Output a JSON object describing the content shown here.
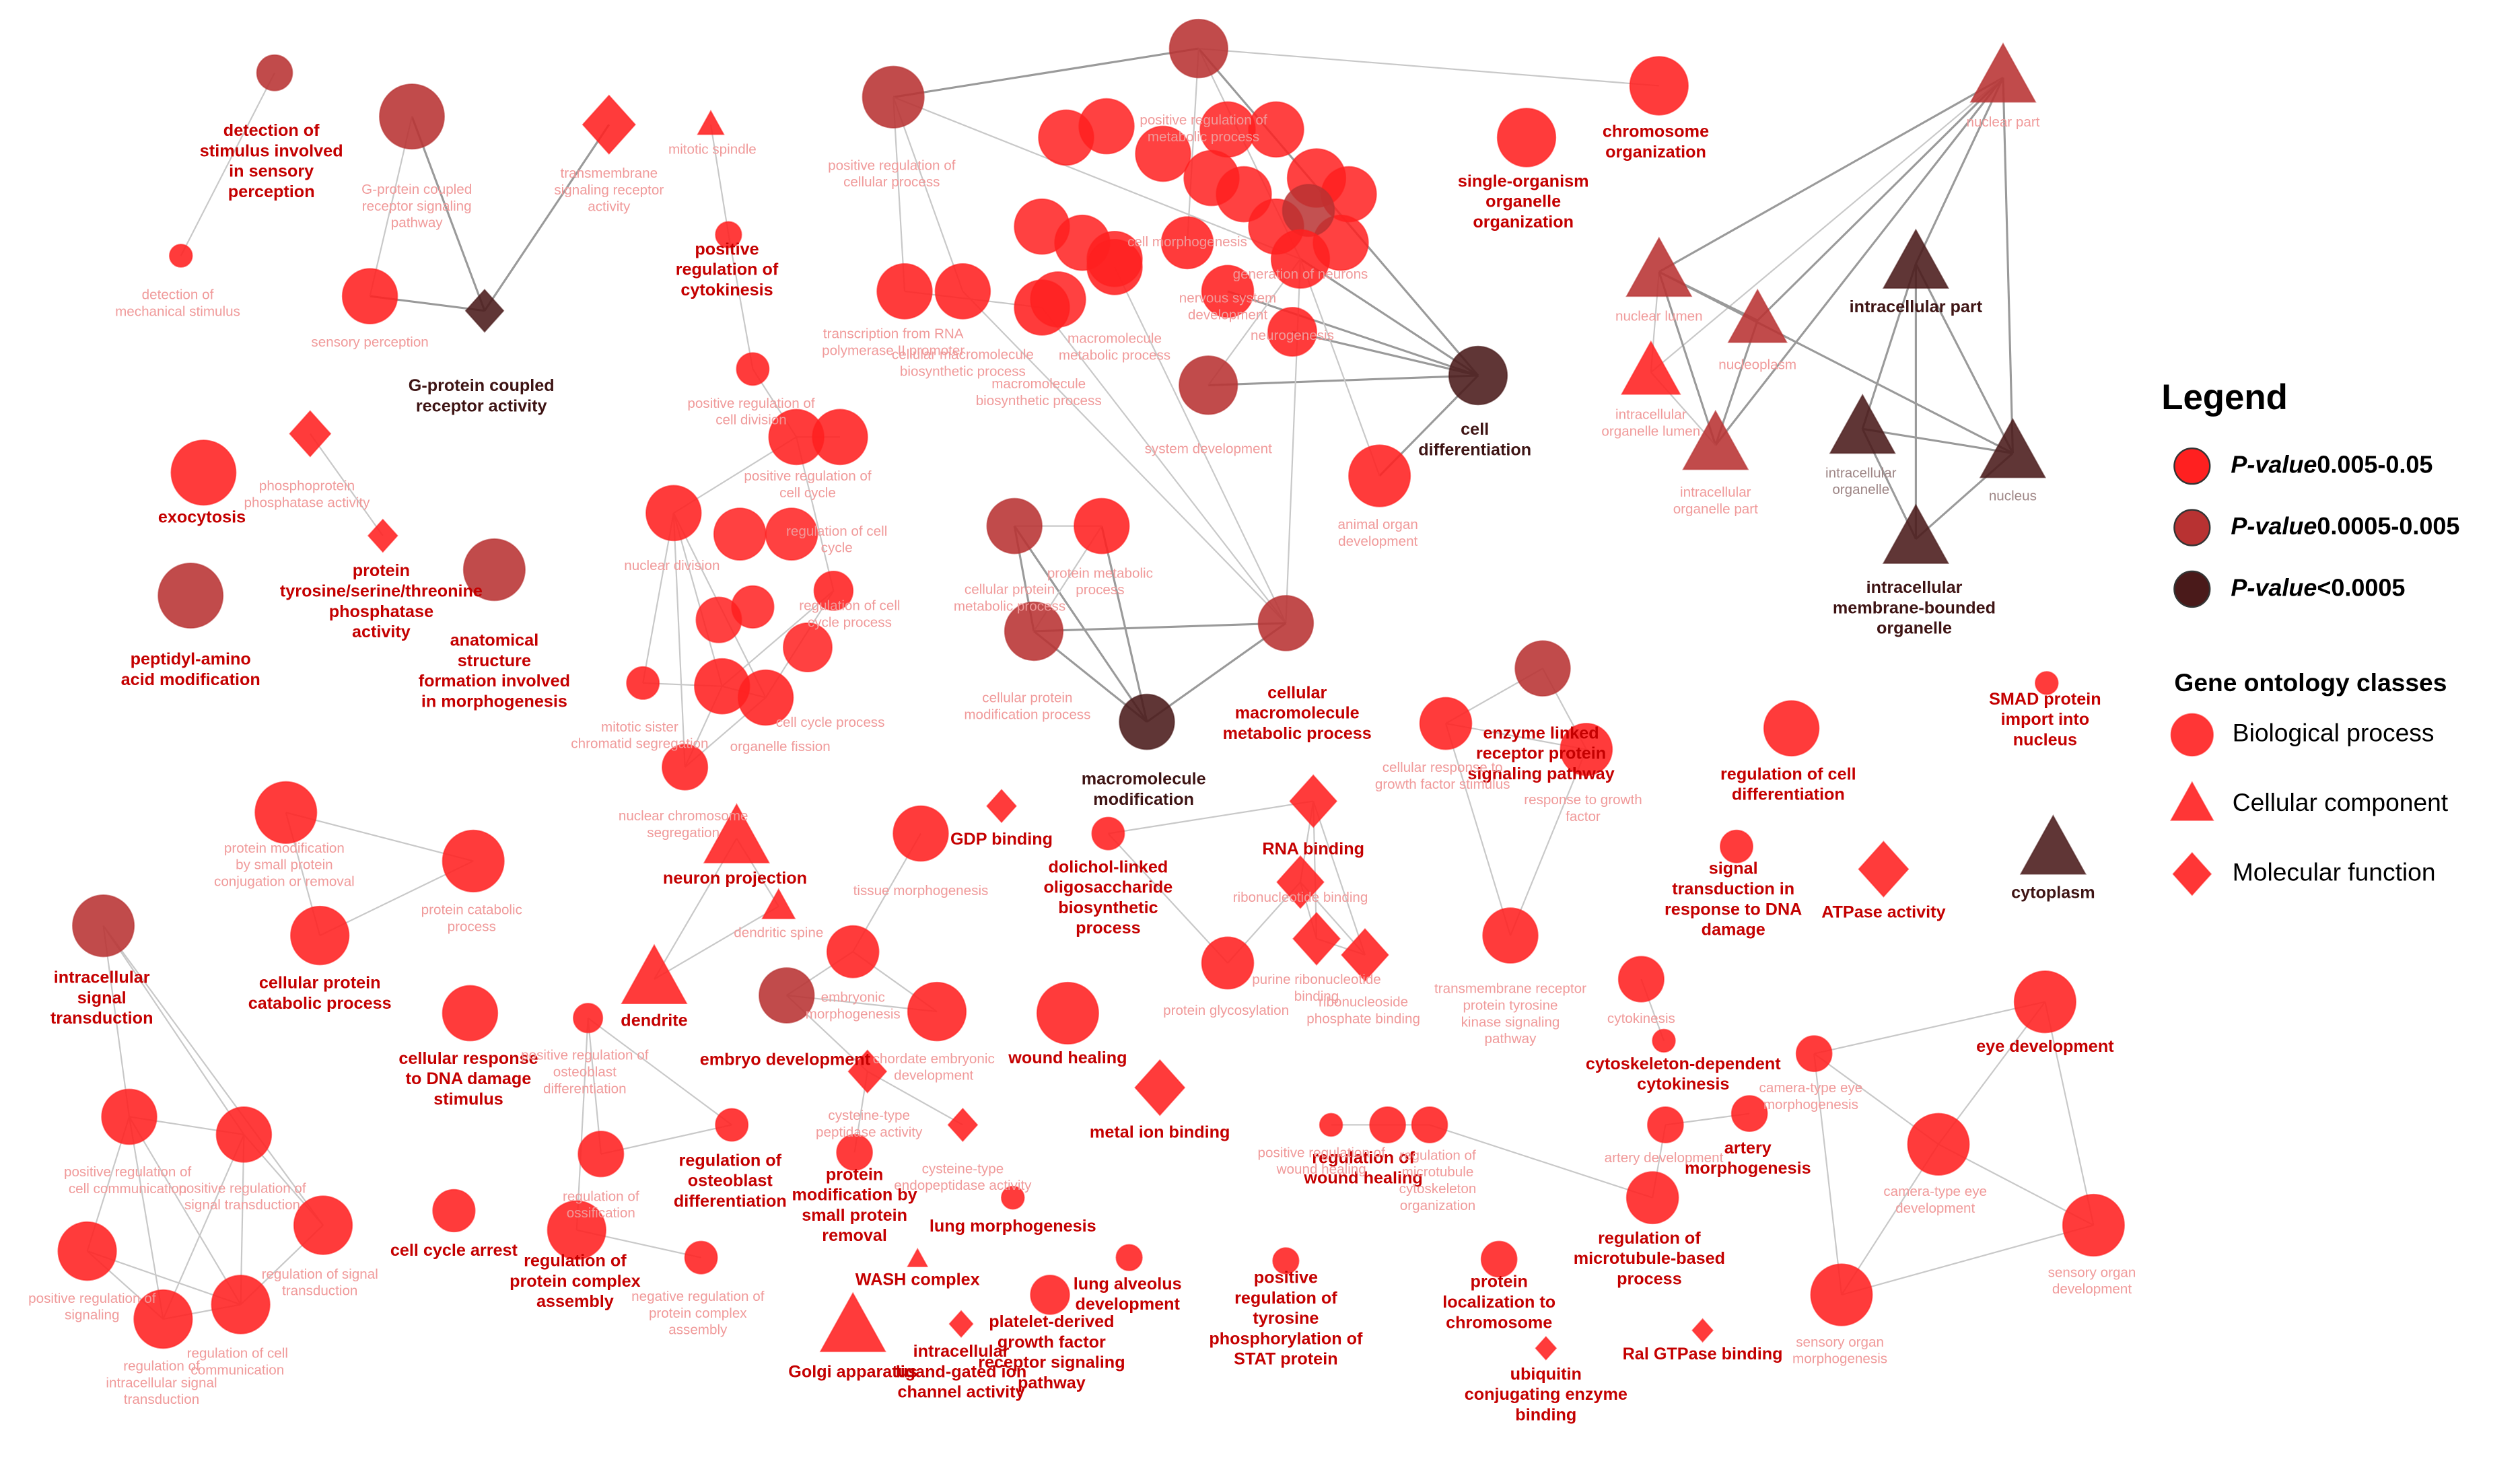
{
  "nodes": [
    {
      "label": "detection of stimulus involved in sensory perception",
      "level": 1,
      "class": 0,
      "bold": true
    },
    {
      "label": "detection of mechanical stimulus",
      "level": 0,
      "class": 0,
      "bold": false
    },
    {
      "label": "G-protein coupled receptor signaling pathway",
      "level": 1,
      "class": 0,
      "bold": false
    },
    {
      "label": "sensory perception",
      "level": 0,
      "class": 0,
      "bold": false
    },
    {
      "label": "G-protein coupled receptor activity",
      "level": 2,
      "class": 2,
      "bold": true
    },
    {
      "label": "transmembrane signaling receptor activity",
      "level": 0,
      "class": 2,
      "bold": false
    },
    {
      "label": "mitotic spindle",
      "level": 0,
      "class": 1,
      "bold": false
    },
    {
      "label": "positive regulation of cytokinesis",
      "level": 0,
      "class": 0,
      "bold": true
    },
    {
      "label": "exocytosis",
      "level": 0,
      "class": 0,
      "bold": true
    },
    {
      "label": "phosphoprotein phosphatase activity",
      "level": 0,
      "class": 2,
      "bold": false
    },
    {
      "label": "protein tyrosine/serine/threonine phosphatase activity",
      "level": 0,
      "class": 2,
      "bold": true
    },
    {
      "label": "peptidyl-amino acid modification",
      "level": 1,
      "class": 0,
      "bold": true
    },
    {
      "label": "anatomical structure formation involved in morphogenesis",
      "level": 1,
      "class": 0,
      "bold": true
    },
    {
      "label": "positive regulation of cell division",
      "level": 0,
      "class": 0,
      "bold": false
    },
    {
      "label": "intracellular signal transduction",
      "level": 1,
      "class": 0,
      "bold": true
    },
    {
      "label": "protein modification by small protein conjugation or removal",
      "level": 0,
      "class": 0,
      "bold": false
    },
    {
      "label": "protein catabolic process",
      "level": 0,
      "class": 0,
      "bold": false
    },
    {
      "label": "cellular protein catabolic process",
      "level": 0,
      "class": 0,
      "bold": true
    },
    {
      "label": "cellular response to DNA damage stimulus",
      "level": 0,
      "class": 0,
      "bold": true
    },
    {
      "label": "positive regulation of osteoblast differentiation",
      "level": 0,
      "class": 0,
      "bold": false
    },
    {
      "label": "regulation of osteoblast differentiation",
      "level": 0,
      "class": 0,
      "bold": true
    },
    {
      "label": "regulation of ossification",
      "level": 0,
      "class": 0,
      "bold": false
    },
    {
      "label": "cell cycle arrest",
      "level": 0,
      "class": 0,
      "bold": true
    },
    {
      "label": "regulation of protein complex assembly",
      "level": 0,
      "class": 0,
      "bold": true
    },
    {
      "label": "negative regulation of protein complex assembly",
      "level": 0,
      "class": 0,
      "bold": false
    },
    {
      "label": "neuron projection",
      "level": 0,
      "class": 1,
      "bold": true
    },
    {
      "label": "dendritic spine",
      "level": 0,
      "class": 1,
      "bold": false
    },
    {
      "label": "dendrite",
      "level": 0,
      "class": 1,
      "bold": true
    },
    {
      "label": "embryonic morphogenesis",
      "level": 0,
      "class": 0,
      "bold": false
    },
    {
      "label": "embryo development",
      "level": 1,
      "class": 0,
      "bold": true
    },
    {
      "label": "chordate embryonic development",
      "level": 0,
      "class": 0,
      "bold": false
    },
    {
      "label": "tissue morphogenesis",
      "level": 0,
      "class": 0,
      "bold": false
    },
    {
      "label": "GDP binding",
      "level": 0,
      "class": 2,
      "bold": true
    },
    {
      "label": "dolichol-linked oligosaccharide biosynthetic process",
      "level": 0,
      "class": 0,
      "bold": true
    },
    {
      "label": "cysteine-type peptidase activity",
      "level": 0,
      "class": 2,
      "bold": false
    },
    {
      "label": "cysteine-type endopeptidase activity",
      "level": 0,
      "class": 2,
      "bold": false
    },
    {
      "label": "protein modification by small protein removal",
      "level": 0,
      "class": 0,
      "bold": true
    },
    {
      "label": "lung morphogenesis",
      "level": 0,
      "class": 0,
      "bold": true
    },
    {
      "label": "wound healing",
      "level": 0,
      "class": 0,
      "bold": true
    },
    {
      "label": "metal ion binding",
      "level": 0,
      "class": 2,
      "bold": true
    },
    {
      "label": "WASH complex",
      "level": 0,
      "class": 1,
      "bold": true
    },
    {
      "label": "Golgi apparatus",
      "level": 0,
      "class": 1,
      "bold": true
    },
    {
      "label": "intracellular ligand-gated ion channel activity",
      "level": 0,
      "class": 2,
      "bold": true
    },
    {
      "label": "platelet-derived growth factor receptor signaling pathway",
      "level": 0,
      "class": 0,
      "bold": true
    },
    {
      "label": "lung alveolus development",
      "level": 0,
      "class": 0,
      "bold": true
    },
    {
      "label": "positive regulation of tyrosine phosphorylation of STAT protein",
      "level": 0,
      "class": 0,
      "bold": true
    },
    {
      "label": "positive regulation of cellular process",
      "level": 1,
      "class": 0,
      "bold": false
    },
    {
      "label": "positive regulation of metabolic process",
      "level": 1,
      "class": 0,
      "bold": false
    },
    {
      "label": "generation of neurons",
      "level": 0,
      "class": 0,
      "bold": false
    },
    {
      "label": "neurogenesis",
      "level": 0,
      "class": 0,
      "bold": false
    },
    {
      "label": "nervous system development",
      "level": 0,
      "class": 0,
      "bold": false
    },
    {
      "label": "cell morphogenesis",
      "level": 0,
      "class": 0,
      "bold": false
    },
    {
      "label": "system development",
      "level": 1,
      "class": 0,
      "bold": false
    },
    {
      "label": "cell differentiation",
      "level": 2,
      "class": 0,
      "bold": true
    },
    {
      "label": "animal organ development",
      "level": 0,
      "class": 0,
      "bold": false
    },
    {
      "label": "transcription from RNA polymerase II promoter",
      "level": 0,
      "class": 0,
      "bold": false
    },
    {
      "label": "cellular macromolecule biosynthetic process",
      "level": 0,
      "class": 0,
      "bold": false
    },
    {
      "label": "macromolecule biosynthetic process",
      "level": 0,
      "class": 0,
      "bold": false
    },
    {
      "label": "macromolecule metabolic process",
      "level": 0,
      "class": 0,
      "bold": false
    },
    {
      "label": "chromosome organization",
      "level": 0,
      "class": 0,
      "bold": true
    },
    {
      "label": "single-organism organelle organization",
      "level": 0,
      "class": 0,
      "bold": true
    },
    {
      "label": "nuclear part",
      "level": 1,
      "class": 1,
      "bold": false
    },
    {
      "label": "nuclear lumen",
      "level": 1,
      "class": 1,
      "bold": false
    },
    {
      "label": "nucleoplasm",
      "level": 1,
      "class": 1,
      "bold": false
    },
    {
      "label": "intracellular organelle lumen",
      "level": 0,
      "class": 1,
      "bold": false
    },
    {
      "label": "intracellular organelle part",
      "level": 1,
      "class": 1,
      "bold": false
    },
    {
      "label": "intracellular part",
      "level": 2,
      "class": 1,
      "bold": true
    },
    {
      "label": "intracellular organelle",
      "level": 2,
      "class": 1,
      "bold": false
    },
    {
      "label": "nucleus",
      "level": 2,
      "class": 1,
      "bold": false
    },
    {
      "label": "intracellular membrane-bounded organelle",
      "level": 2,
      "class": 1,
      "bold": true
    },
    {
      "label": "cytoplasm",
      "level": 2,
      "class": 1,
      "bold": true
    },
    {
      "label": "SMAD protein import into nucleus",
      "level": 0,
      "class": 0,
      "bold": true
    },
    {
      "label": "regulation of cell differentiation",
      "level": 0,
      "class": 0,
      "bold": true
    },
    {
      "label": "signal transduction in response to DNA damage",
      "level": 0,
      "class": 0,
      "bold": true
    },
    {
      "label": "ATPase activity",
      "level": 0,
      "class": 2,
      "bold": true
    },
    {
      "label": "enzyme linked receptor protein signaling pathway",
      "level": 1,
      "class": 0,
      "bold": true
    },
    {
      "label": "cellular response to growth factor stimulus",
      "level": 0,
      "class": 0,
      "bold": false
    },
    {
      "label": "response to growth factor",
      "level": 0,
      "class": 0,
      "bold": false
    },
    {
      "label": "transmembrane receptor protein tyrosine kinase signaling pathway",
      "level": 0,
      "class": 0,
      "bold": false
    },
    {
      "label": "cellular macromolecule metabolic process",
      "level": 1,
      "class": 0,
      "bold": true
    },
    {
      "label": "macromolecule modification",
      "level": 2,
      "class": 0,
      "bold": true
    },
    {
      "label": "cellular protein metabolic process",
      "level": 1,
      "class": 0,
      "bold": false
    },
    {
      "label": "protein metabolic process",
      "level": 0,
      "class": 0,
      "bold": false
    },
    {
      "label": "cellular protein modification process",
      "level": 1,
      "class": 0,
      "bold": false
    },
    {
      "label": "RNA binding",
      "level": 0,
      "class": 2,
      "bold": true
    },
    {
      "label": "ribonucleotide binding",
      "level": 0,
      "class": 2,
      "bold": false
    },
    {
      "label": "purine ribonucleotide binding",
      "level": 0,
      "class": 2,
      "bold": false
    },
    {
      "label": "ribonucleoside phosphate binding",
      "level": 0,
      "class": 2,
      "bold": false
    },
    {
      "label": "protein glycosylation",
      "level": 0,
      "class": 0,
      "bold": false
    },
    {
      "label": "cytokinesis",
      "level": 0,
      "class": 0,
      "bold": false
    },
    {
      "label": "cytoskeleton-dependent cytokinesis",
      "level": 0,
      "class": 0,
      "bold": true
    },
    {
      "label": "artery development",
      "level": 0,
      "class": 0,
      "bold": false
    },
    {
      "label": "artery morphogenesis",
      "level": 0,
      "class": 0,
      "bold": true
    },
    {
      "label": "regulation of microtubule-based process",
      "level": 0,
      "class": 0,
      "bold": true
    },
    {
      "label": "protein localization to chromosome",
      "level": 0,
      "class": 0,
      "bold": true
    },
    {
      "label": "Ral GTPase binding",
      "level": 0,
      "class": 2,
      "bold": true
    },
    {
      "label": "ubiquitin conjugating enzyme binding",
      "level": 0,
      "class": 2,
      "bold": true
    },
    {
      "label": "regulation of wound healing",
      "level": 0,
      "class": 0,
      "bold": true
    },
    {
      "label": "positive regulation of wound healing",
      "level": 0,
      "class": 0,
      "bold": false
    },
    {
      "label": "regulation of microtubule cytoskeleton organization",
      "level": 0,
      "class": 0,
      "bold": false
    },
    {
      "label": "eye development",
      "level": 0,
      "class": 0,
      "bold": true
    },
    {
      "label": "camera-type eye morphogenesis",
      "level": 0,
      "class": 0,
      "bold": false
    },
    {
      "label": "camera-type eye development",
      "level": 0,
      "class": 0,
      "bold": false
    },
    {
      "label": "sensory organ development",
      "level": 0,
      "class": 0,
      "bold": false
    },
    {
      "label": "sensory organ morphogenesis",
      "level": 0,
      "class": 0,
      "bold": false
    },
    {
      "label": "positive regulation of cell communication",
      "level": 0,
      "class": 0,
      "bold": false
    },
    {
      "label": "positive regulation of signal transduction",
      "level": 0,
      "class": 0,
      "bold": false
    },
    {
      "label": "regulation of signal transduction",
      "level": 0,
      "class": 0,
      "bold": false
    },
    {
      "label": "positive regulation of signaling",
      "level": 0,
      "class": 0,
      "bold": false
    },
    {
      "label": "regulation of intracellular signal transduction",
      "level": 0,
      "class": 0,
      "bold": false
    },
    {
      "label": "regulation of cell communication",
      "level": 0,
      "class": 0,
      "bold": false
    },
    {
      "label": "nuclear division",
      "level": 0,
      "class": 0,
      "bold": false
    },
    {
      "label": "mitotic sister chromatid segregation",
      "level": 0,
      "class": 0,
      "bold": false
    },
    {
      "label": "nuclear chromosome segregation",
      "level": 0,
      "class": 0,
      "bold": false
    },
    {
      "label": "cell cycle process",
      "level": 0,
      "class": 0,
      "bold": false
    },
    {
      "label": "organelle fission",
      "level": 0,
      "class": 0,
      "bold": false
    },
    {
      "label": "regulation of cell cycle process",
      "level": 0,
      "class": 0,
      "bold": false
    },
    {
      "label": "positive regulation of cell cycle",
      "level": 0,
      "class": 0,
      "bold": false
    },
    {
      "label": "regulation of cell cycle",
      "level": 0,
      "class": 0,
      "bold": false
    }
  ],
  "legend": {
    "title": "Legend",
    "significance": [
      {
        "prefix": "P-value",
        "range": "0.005-0.05",
        "color": "#ff2020"
      },
      {
        "prefix": "P-value",
        "range": "0.0005-0.005",
        "color": "#b83232"
      },
      {
        "prefix": "P-value",
        "range": "<0.0005",
        "color": "#4a1a1a"
      }
    ],
    "classes_title": "Gene ontology classes",
    "classes": [
      {
        "label": "Biological process",
        "shape": "circle"
      },
      {
        "label": "Cellular component",
        "shape": "triangle"
      },
      {
        "label": "Molecular function",
        "shape": "diamond"
      }
    ]
  }
}
